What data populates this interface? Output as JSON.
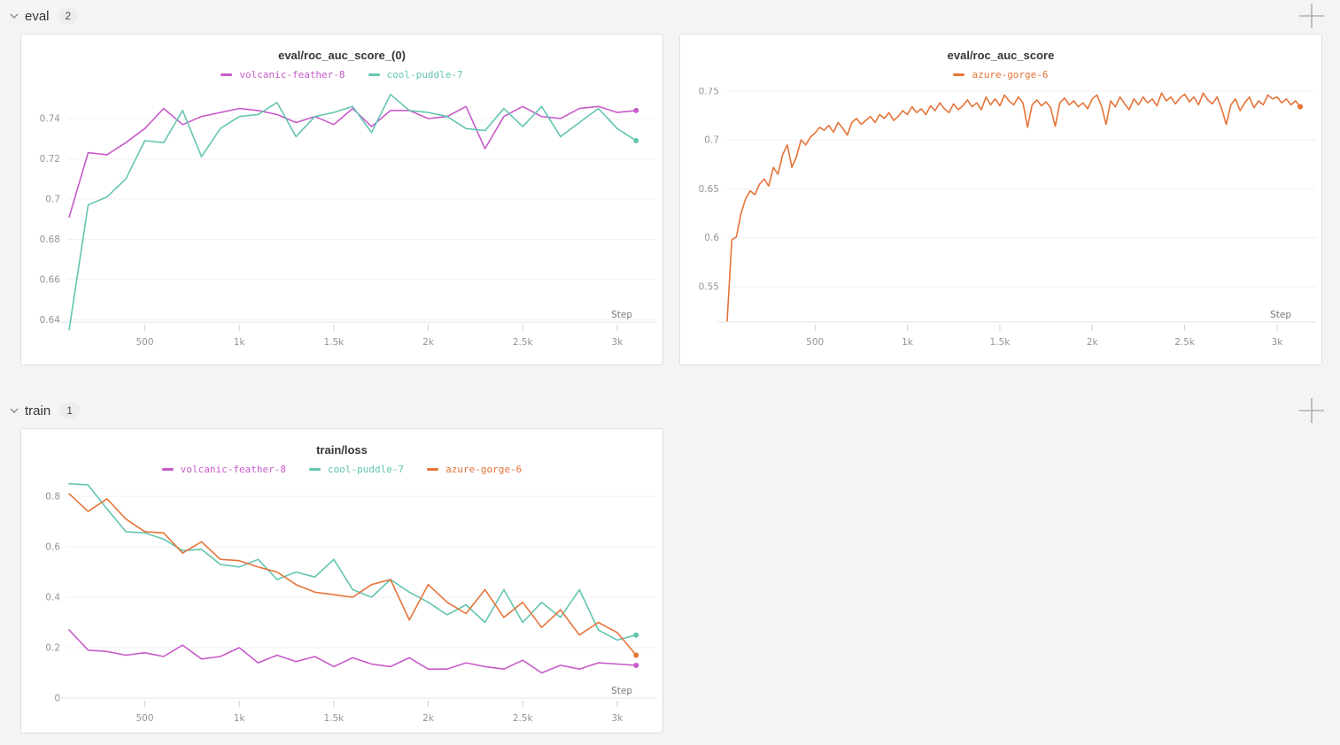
{
  "sections": [
    {
      "label": "eval",
      "count": "2",
      "collapse_icon": "chevron-down",
      "add_icon": "plus"
    },
    {
      "label": "train",
      "count": "1",
      "collapse_icon": "chevron-down",
      "add_icon": "plus"
    }
  ],
  "colors": {
    "volcanic_feather_8": "#c75bc9",
    "cool_puddle_7": "#64c5b1",
    "azure_gorge_6": "#e57439",
    "grid": "#f0f0f0",
    "axis": "#e3e3e3",
    "tick": "#cfcfcf"
  },
  "chart_data": [
    {
      "type": "line",
      "title": "eval/roc_auc_score_(0)",
      "xlabel": "Step",
      "grid": true,
      "legend_position": "top",
      "xlim": [
        90,
        3230
      ],
      "ylim": [
        0.6388,
        0.7545
      ],
      "x_ticks": [
        500,
        1000,
        1500,
        2000,
        2500,
        3000
      ],
      "x_tick_labels": [
        "500",
        "1k",
        "1.5k",
        "2k",
        "2.5k",
        "3k"
      ],
      "y_ticks": [
        0.64,
        0.66,
        0.68,
        0.7,
        0.72,
        0.74
      ],
      "y_tick_labels": [
        "0.64",
        "0.66",
        "0.68",
        "0.7",
        "0.72",
        "0.74"
      ],
      "series": [
        {
          "name": "volcanic-feather-8",
          "color": "#c75bc9",
          "x": [
            100,
            200,
            300,
            400,
            500,
            600,
            700,
            800,
            900,
            1000,
            1100,
            1200,
            1300,
            1400,
            1500,
            1600,
            1700,
            1800,
            1900,
            2000,
            2100,
            2200,
            2300,
            2400,
            2500,
            2600,
            2700,
            2800,
            2900,
            3000,
            3100
          ],
          "y": [
            0.691,
            0.723,
            0.722,
            0.728,
            0.735,
            0.745,
            0.737,
            0.741,
            0.743,
            0.745,
            0.744,
            0.742,
            0.738,
            0.741,
            0.737,
            0.745,
            0.736,
            0.744,
            0.744,
            0.74,
            0.741,
            0.746,
            0.725,
            0.741,
            0.746,
            0.741,
            0.74,
            0.745,
            0.746,
            0.743,
            0.744
          ]
        },
        {
          "name": "cool-puddle-7",
          "color": "#64c5b1",
          "x": [
            100,
            200,
            300,
            400,
            500,
            600,
            700,
            800,
            900,
            1000,
            1100,
            1200,
            1300,
            1400,
            1500,
            1600,
            1700,
            1800,
            1900,
            2000,
            2100,
            2200,
            2300,
            2400,
            2500,
            2600,
            2700,
            2800,
            2900,
            3000,
            3100
          ],
          "y": [
            0.635,
            0.697,
            0.701,
            0.71,
            0.729,
            0.728,
            0.744,
            0.721,
            0.735,
            0.741,
            0.742,
            0.748,
            0.731,
            0.741,
            0.743,
            0.746,
            0.733,
            0.752,
            0.744,
            0.743,
            0.741,
            0.735,
            0.734,
            0.745,
            0.736,
            0.746,
            0.731,
            0.738,
            0.745,
            0.735,
            0.729
          ]
        }
      ]
    },
    {
      "type": "line",
      "title": "eval/roc_auc_score",
      "xlabel": "Step",
      "grid": true,
      "legend_position": "top",
      "xlim": [
        20,
        3230
      ],
      "ylim": [
        0.5138,
        0.7518
      ],
      "x_ticks": [
        500,
        1000,
        1500,
        2000,
        2500,
        3000
      ],
      "x_tick_labels": [
        "500",
        "1k",
        "1.5k",
        "2k",
        "2.5k",
        "3k"
      ],
      "y_ticks": [
        0.55,
        0.6,
        0.65,
        0.7,
        0.75
      ],
      "y_tick_labels": [
        "0.55",
        "0.6",
        "0.65",
        "0.7",
        "0.75"
      ],
      "series": [
        {
          "name": "azure-gorge-6",
          "color": "#e57439",
          "x": [
            25,
            50,
            75,
            100,
            125,
            150,
            175,
            200,
            225,
            250,
            275,
            300,
            325,
            350,
            375,
            400,
            425,
            450,
            475,
            500,
            525,
            550,
            575,
            600,
            625,
            650,
            675,
            700,
            725,
            750,
            775,
            800,
            825,
            850,
            875,
            900,
            925,
            950,
            975,
            1000,
            1025,
            1050,
            1075,
            1100,
            1125,
            1150,
            1175,
            1200,
            1225,
            1250,
            1275,
            1300,
            1325,
            1350,
            1375,
            1400,
            1425,
            1450,
            1475,
            1500,
            1525,
            1550,
            1575,
            1600,
            1625,
            1650,
            1675,
            1700,
            1725,
            1750,
            1775,
            1800,
            1825,
            1850,
            1875,
            1900,
            1925,
            1950,
            1975,
            2000,
            2025,
            2050,
            2075,
            2100,
            2125,
            2150,
            2175,
            2200,
            2225,
            2250,
            2275,
            2300,
            2325,
            2350,
            2375,
            2400,
            2425,
            2450,
            2475,
            2500,
            2525,
            2550,
            2575,
            2600,
            2625,
            2650,
            2675,
            2700,
            2725,
            2750,
            2775,
            2800,
            2825,
            2850,
            2875,
            2900,
            2925,
            2950,
            2975,
            3000,
            3025,
            3050,
            3075,
            3100,
            3125
          ],
          "y": [
            0.515,
            0.598,
            0.601,
            0.625,
            0.64,
            0.648,
            0.644,
            0.655,
            0.66,
            0.653,
            0.672,
            0.665,
            0.685,
            0.695,
            0.672,
            0.683,
            0.7,
            0.695,
            0.703,
            0.707,
            0.713,
            0.71,
            0.715,
            0.708,
            0.718,
            0.712,
            0.705,
            0.718,
            0.722,
            0.716,
            0.72,
            0.724,
            0.718,
            0.726,
            0.722,
            0.728,
            0.72,
            0.724,
            0.73,
            0.726,
            0.734,
            0.728,
            0.732,
            0.726,
            0.735,
            0.73,
            0.738,
            0.732,
            0.728,
            0.737,
            0.731,
            0.735,
            0.741,
            0.734,
            0.738,
            0.731,
            0.744,
            0.736,
            0.742,
            0.735,
            0.746,
            0.74,
            0.736,
            0.744,
            0.738,
            0.713,
            0.736,
            0.741,
            0.735,
            0.739,
            0.733,
            0.714,
            0.738,
            0.743,
            0.736,
            0.74,
            0.734,
            0.738,
            0.732,
            0.742,
            0.746,
            0.735,
            0.716,
            0.74,
            0.734,
            0.744,
            0.737,
            0.731,
            0.742,
            0.736,
            0.744,
            0.738,
            0.742,
            0.735,
            0.748,
            0.74,
            0.744,
            0.737,
            0.743,
            0.747,
            0.739,
            0.744,
            0.736,
            0.748,
            0.741,
            0.737,
            0.744,
            0.732,
            0.716,
            0.736,
            0.742,
            0.73,
            0.738,
            0.744,
            0.733,
            0.74,
            0.736,
            0.746,
            0.742,
            0.744,
            0.738,
            0.742,
            0.736,
            0.74,
            0.734
          ]
        }
      ]
    },
    {
      "type": "line",
      "title": "train/loss",
      "xlabel": "Step",
      "grid": true,
      "legend_position": "top",
      "xlim": [
        90,
        3230
      ],
      "ylim": [
        0,
        0.849
      ],
      "x_ticks": [
        500,
        1000,
        1500,
        2000,
        2500,
        3000
      ],
      "x_tick_labels": [
        "500",
        "1k",
        "1.5k",
        "2k",
        "2.5k",
        "3k"
      ],
      "y_ticks": [
        0,
        0.2,
        0.4,
        0.6,
        0.8
      ],
      "y_tick_labels": [
        "0",
        "0.2",
        "0.4",
        "0.6",
        "0.8"
      ],
      "series": [
        {
          "name": "volcanic-feather-8",
          "color": "#c75bc9",
          "x": [
            100,
            200,
            300,
            400,
            500,
            600,
            700,
            800,
            900,
            1000,
            1100,
            1200,
            1300,
            1400,
            1500,
            1600,
            1700,
            1800,
            1900,
            2000,
            2100,
            2200,
            2300,
            2400,
            2500,
            2600,
            2700,
            2800,
            2900,
            3000,
            3100
          ],
          "y": [
            0.27,
            0.19,
            0.185,
            0.17,
            0.18,
            0.165,
            0.21,
            0.155,
            0.165,
            0.2,
            0.14,
            0.17,
            0.145,
            0.165,
            0.125,
            0.16,
            0.135,
            0.125,
            0.16,
            0.115,
            0.115,
            0.14,
            0.125,
            0.115,
            0.15,
            0.1,
            0.13,
            0.115,
            0.14,
            0.135,
            0.13
          ]
        },
        {
          "name": "cool-puddle-7",
          "color": "#64c5b1",
          "x": [
            100,
            200,
            300,
            400,
            500,
            600,
            700,
            800,
            900,
            1000,
            1100,
            1200,
            1300,
            1400,
            1500,
            1600,
            1700,
            1800,
            1900,
            2000,
            2100,
            2200,
            2300,
            2400,
            2500,
            2600,
            2700,
            2800,
            2900,
            3000,
            3100
          ],
          "y": [
            0.85,
            0.845,
            0.75,
            0.66,
            0.655,
            0.63,
            0.585,
            0.59,
            0.53,
            0.52,
            0.55,
            0.47,
            0.5,
            0.48,
            0.55,
            0.43,
            0.4,
            0.47,
            0.42,
            0.38,
            0.33,
            0.37,
            0.3,
            0.43,
            0.3,
            0.38,
            0.32,
            0.43,
            0.27,
            0.23,
            0.25
          ]
        },
        {
          "name": "azure-gorge-6",
          "color": "#e57439",
          "x": [
            100,
            200,
            300,
            400,
            500,
            600,
            700,
            800,
            900,
            1000,
            1100,
            1200,
            1300,
            1400,
            1500,
            1600,
            1700,
            1800,
            1900,
            2000,
            2100,
            2200,
            2300,
            2400,
            2500,
            2600,
            2700,
            2800,
            2900,
            3000,
            3100
          ],
          "y": [
            0.81,
            0.74,
            0.79,
            0.71,
            0.66,
            0.655,
            0.575,
            0.62,
            0.55,
            0.545,
            0.52,
            0.5,
            0.45,
            0.42,
            0.41,
            0.4,
            0.45,
            0.47,
            0.31,
            0.45,
            0.38,
            0.335,
            0.43,
            0.32,
            0.38,
            0.28,
            0.35,
            0.25,
            0.3,
            0.26,
            0.17
          ]
        }
      ]
    }
  ]
}
